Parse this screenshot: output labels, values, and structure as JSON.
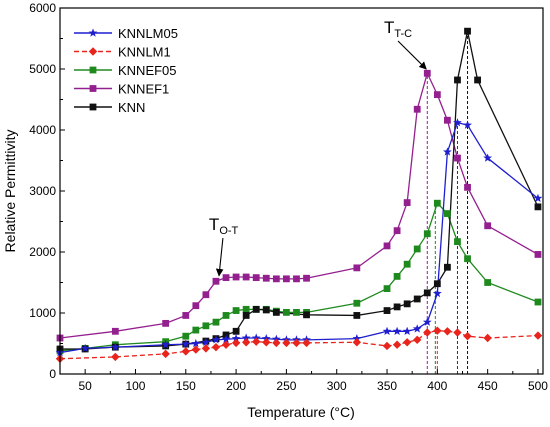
{
  "chart_data": {
    "type": "line",
    "xlabel": "Temperature (°C)",
    "ylabel": "Relative Permittivity",
    "xlim": [
      25,
      505
    ],
    "ylim": [
      0,
      6000
    ],
    "xticks": [
      50,
      100,
      150,
      200,
      250,
      300,
      350,
      400,
      450,
      500
    ],
    "yticks": [
      0,
      1000,
      2000,
      3000,
      4000,
      5000,
      6000
    ],
    "grid": false,
    "legend_position": "top-left",
    "series": [
      {
        "name": "KNNLM05",
        "color": "#1f1fd0",
        "marker": "star",
        "dash": "solid",
        "x": [
          25,
          50,
          80,
          130,
          150,
          160,
          170,
          180,
          190,
          200,
          210,
          220,
          230,
          240,
          250,
          260,
          270,
          320,
          350,
          360,
          370,
          380,
          390,
          400,
          410,
          420,
          430,
          450,
          500
        ],
        "y": [
          350,
          420,
          440,
          480,
          490,
          500,
          520,
          560,
          570,
          580,
          590,
          590,
          580,
          570,
          560,
          560,
          560,
          580,
          700,
          700,
          700,
          740,
          850,
          1320,
          3640,
          4120,
          4080,
          3540,
          2880
        ]
      },
      {
        "name": "KNNLM1",
        "color": "#e8241c",
        "marker": "diamond",
        "dash": "dashed",
        "x": [
          25,
          80,
          130,
          150,
          160,
          170,
          180,
          190,
          200,
          210,
          220,
          230,
          240,
          250,
          260,
          270,
          320,
          350,
          360,
          370,
          380,
          390,
          400,
          410,
          420,
          430,
          450,
          500
        ],
        "y": [
          250,
          280,
          330,
          370,
          400,
          420,
          440,
          480,
          510,
          520,
          530,
          520,
          510,
          510,
          510,
          510,
          520,
          460,
          480,
          520,
          560,
          680,
          710,
          700,
          680,
          620,
          590,
          630
        ]
      },
      {
        "name": "KNNEF05",
        "color": "#1e8a1e",
        "marker": "square",
        "dash": "solid",
        "x": [
          25,
          50,
          80,
          130,
          150,
          160,
          170,
          180,
          190,
          200,
          210,
          220,
          230,
          240,
          250,
          260,
          270,
          320,
          350,
          360,
          370,
          380,
          390,
          400,
          410,
          420,
          430,
          450,
          500
        ],
        "y": [
          380,
          420,
          480,
          530,
          620,
          720,
          790,
          850,
          960,
          1040,
          1060,
          1060,
          1060,
          1030,
          1010,
          1010,
          1010,
          1160,
          1400,
          1600,
          1800,
          2050,
          2300,
          2800,
          2630,
          2170,
          1890,
          1500,
          1180
        ]
      },
      {
        "name": "KNNEF1",
        "color": "#94208f",
        "marker": "square",
        "dash": "solid",
        "x": [
          25,
          80,
          130,
          150,
          160,
          170,
          180,
          190,
          200,
          210,
          220,
          230,
          240,
          250,
          260,
          270,
          320,
          350,
          360,
          370,
          380,
          390,
          400,
          410,
          420,
          430,
          450,
          500
        ],
        "y": [
          590,
          700,
          830,
          960,
          1120,
          1300,
          1520,
          1580,
          1590,
          1590,
          1580,
          1570,
          1560,
          1560,
          1560,
          1570,
          1740,
          2100,
          2350,
          2810,
          4340,
          4930,
          4580,
          4160,
          3540,
          3060,
          2430,
          1960
        ]
      },
      {
        "name": "KNN",
        "color": "#111111",
        "marker": "square",
        "dash": "solid",
        "x": [
          25,
          50,
          80,
          130,
          150,
          170,
          180,
          190,
          200,
          210,
          220,
          230,
          240,
          270,
          320,
          350,
          360,
          370,
          380,
          390,
          400,
          410,
          420,
          430,
          440,
          500
        ],
        "y": [
          410,
          410,
          440,
          460,
          490,
          540,
          580,
          640,
          700,
          960,
          1060,
          1050,
          1010,
          970,
          960,
          1040,
          1100,
          1150,
          1230,
          1330,
          1480,
          1750,
          4820,
          5620,
          4820,
          2740
        ]
      }
    ],
    "annotations": [
      {
        "label_main": "T",
        "label_sub": "O-T",
        "text_x": 173,
        "text_y": 2360,
        "arrow_to_x": 183,
        "arrow_to_y": 1560
      },
      {
        "label_main": "T",
        "label_sub": "T-C",
        "text_x": 347,
        "text_y": 5590,
        "arrow_to_x": 389,
        "arrow_to_y": 4950
      }
    ],
    "reference_lines": [
      {
        "x": 390,
        "color": "#94208f",
        "y_to": 4930
      },
      {
        "x": 398,
        "color": "#1e8a1e",
        "y_to": 2800
      },
      {
        "x": 400,
        "color": "#e8241c",
        "y_to": 710
      },
      {
        "x": 420,
        "color": "#1f1fd0",
        "y_to": 4120
      },
      {
        "x": 430,
        "color": "#111111",
        "y_to": 5620
      }
    ]
  }
}
